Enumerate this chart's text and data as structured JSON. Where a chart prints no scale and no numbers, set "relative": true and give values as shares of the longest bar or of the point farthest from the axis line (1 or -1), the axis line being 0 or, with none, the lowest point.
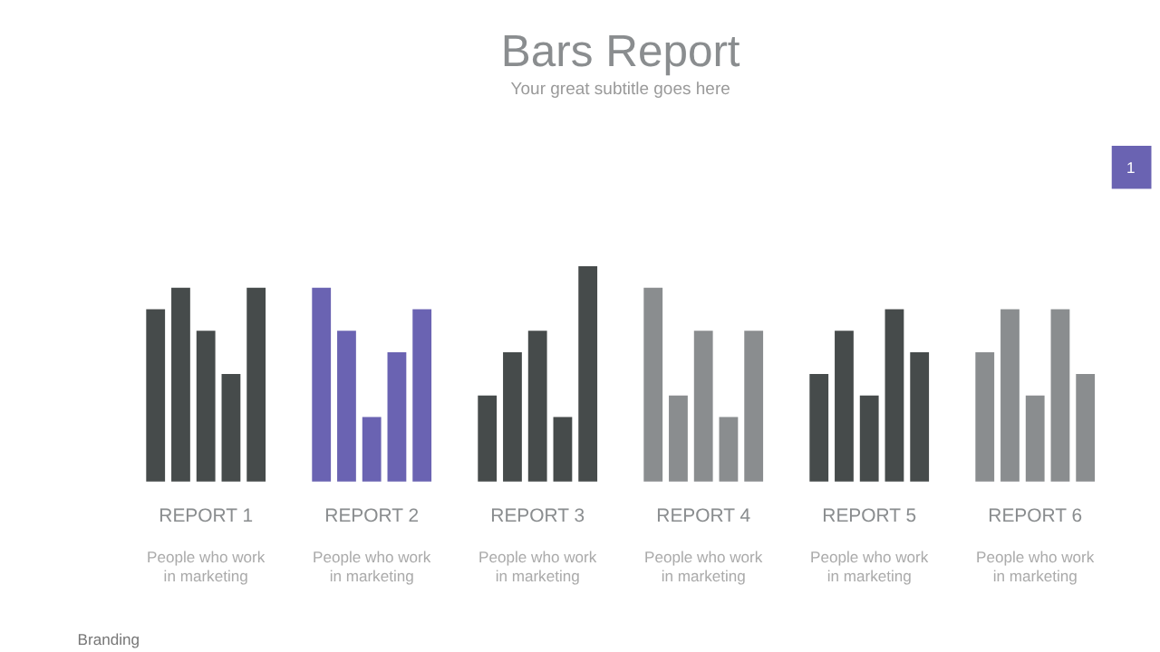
{
  "chart_data": {
    "type": "bar",
    "title": "Bars Report",
    "subtitle": "Your great subtitle goes here",
    "relative": true,
    "categories": [
      "REPORT 1",
      "REPORT 2",
      "REPORT 3",
      "REPORT 4",
      "REPORT 5",
      "REPORT 6"
    ],
    "series": [
      {
        "values": [
          0.8,
          0.9,
          0.4,
          0.9,
          0.5,
          0.6
        ],
        "colors": [
          "#464b4b",
          "#6a63b2",
          "#464b4b",
          "#8a8d8f",
          "#464b4b",
          "#8a8d8f"
        ]
      },
      {
        "values": [
          0.9,
          0.7,
          0.6,
          0.4,
          0.7,
          0.8
        ],
        "colors": [
          "#464b4b",
          "#6a63b2",
          "#464b4b",
          "#8a8d8f",
          "#464b4b",
          "#8a8d8f"
        ]
      },
      {
        "values": [
          0.7,
          0.3,
          0.7,
          0.7,
          0.4,
          0.4
        ],
        "colors": [
          "#464b4b",
          "#6a63b2",
          "#464b4b",
          "#8a8d8f",
          "#464b4b",
          "#8a8d8f"
        ]
      },
      {
        "values": [
          0.5,
          0.6,
          0.3,
          0.3,
          0.8,
          0.8
        ],
        "colors": [
          "#464b4b",
          "#6a63b2",
          "#464b4b",
          "#8a8d8f",
          "#464b4b",
          "#8a8d8f"
        ]
      },
      {
        "values": [
          0.9,
          0.8,
          1.0,
          0.7,
          0.6,
          0.5
        ],
        "colors": [
          "#464b4b",
          "#6a63b2",
          "#464b4b",
          "#8a8d8f",
          "#464b4b",
          "#8a8d8f"
        ]
      }
    ],
    "annotations": [
      "1",
      "Branding",
      "People who work in marketing",
      "People who work in marketing",
      "People who work in marketing",
      "People who work in marketing",
      "People who work in marketing",
      "People who work in marketing"
    ]
  }
}
